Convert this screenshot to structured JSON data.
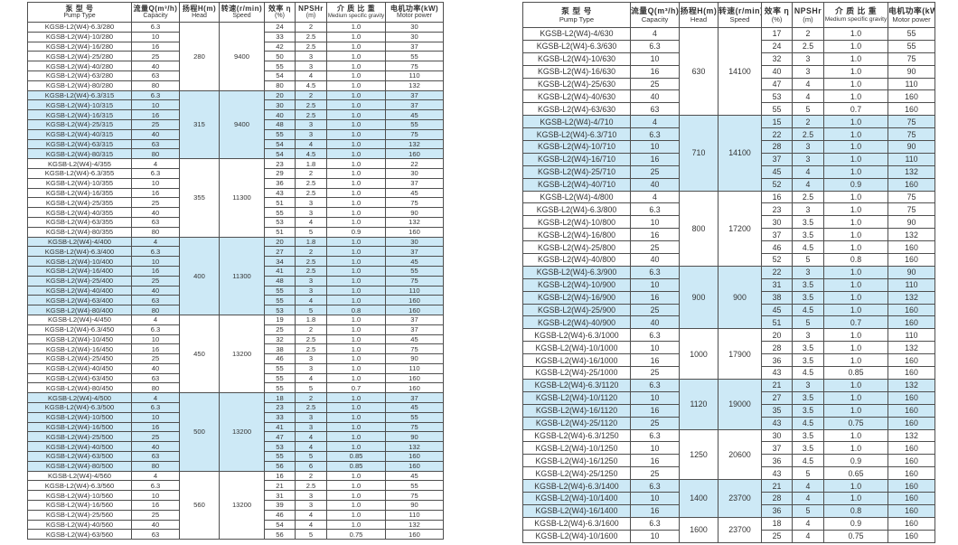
{
  "page": {
    "background_color": "#ffffff",
    "shade_color": "#cde9f6",
    "border_color": "#4f4f4f",
    "text_color": "#333333"
  },
  "columns": [
    {
      "key": "pump-type",
      "zh": "泵 型 号",
      "en": "Pump Type"
    },
    {
      "key": "capacity",
      "zh": "流量Q(m³/h)",
      "en": "Capacity"
    },
    {
      "key": "head",
      "zh": "扬程H(m)",
      "en": "Head"
    },
    {
      "key": "speed",
      "zh": "转速(r/min)",
      "en": "Speed"
    },
    {
      "key": "efficiency",
      "zh": "效率 η",
      "en": "(%)"
    },
    {
      "key": "npshr",
      "zh": "NPSHr",
      "en": "(m)"
    },
    {
      "key": "gravity",
      "zh": "介 质 比 重",
      "en": "Medium specific gravity"
    },
    {
      "key": "motor-power",
      "zh": "电机功率(kW)",
      "en": "Motor power"
    }
  ],
  "left_table": {
    "groups": [
      {
        "head": "280",
        "speed": "9400",
        "shaded": false,
        "rows": [
          [
            "KGSB-L2(W4)-6.3/280",
            "6.3",
            "24",
            "2",
            "1.0",
            "30"
          ],
          [
            "KGSB-L2(W4)-10/280",
            "10",
            "33",
            "2.5",
            "1.0",
            "30"
          ],
          [
            "KGSB-L2(W4)-16/280",
            "16",
            "42",
            "2.5",
            "1.0",
            "37"
          ],
          [
            "KGSB-L2(W4)-25/280",
            "25",
            "50",
            "3",
            "1.0",
            "55"
          ],
          [
            "KGSB-L2(W4)-40/280",
            "40",
            "55",
            "3",
            "1.0",
            "75"
          ],
          [
            "KGSB-L2(W4)-63/280",
            "63",
            "54",
            "4",
            "1.0",
            "110"
          ],
          [
            "KGSB-L2(W4)-80/280",
            "80",
            "80",
            "4.5",
            "1.0",
            "132"
          ]
        ]
      },
      {
        "head": "315",
        "speed": "9400",
        "shaded": true,
        "rows": [
          [
            "KGSB-L2(W4)-6.3/315",
            "6.3",
            "20",
            "2",
            "1.0",
            "37"
          ],
          [
            "KGSB-L2(W4)-10/315",
            "10",
            "30",
            "2.5",
            "1.0",
            "37"
          ],
          [
            "KGSB-L2(W4)-16/315",
            "16",
            "40",
            "2.5",
            "1.0",
            "45"
          ],
          [
            "KGSB-L2(W4)-25/315",
            "25",
            "48",
            "3",
            "1.0",
            "55"
          ],
          [
            "KGSB-L2(W4)-40/315",
            "40",
            "55",
            "3",
            "1.0",
            "75"
          ],
          [
            "KGSB-L2(W4)-63/315",
            "63",
            "54",
            "4",
            "1.0",
            "132"
          ],
          [
            "KGSB-L2(W4)-80/315",
            "80",
            "54",
            "4.5",
            "1.0",
            "160"
          ]
        ]
      },
      {
        "head": "355",
        "speed": "11300",
        "shaded": false,
        "rows": [
          [
            "KGSB-L2(W4)-4/355",
            "4",
            "23",
            "1.8",
            "1.0",
            "22"
          ],
          [
            "KGSB-L2(W4)-6.3/355",
            "6.3",
            "29",
            "2",
            "1.0",
            "30"
          ],
          [
            "KGSB-L2(W4)-10/355",
            "10",
            "36",
            "2.5",
            "1.0",
            "37"
          ],
          [
            "KGSB-L2(W4)-16/355",
            "16",
            "43",
            "2.5",
            "1.0",
            "45"
          ],
          [
            "KGSB-L2(W4)-25/355",
            "25",
            "51",
            "3",
            "1.0",
            "75"
          ],
          [
            "KGSB-L2(W4)-40/355",
            "40",
            "55",
            "3",
            "1.0",
            "90"
          ],
          [
            "KGSB-L2(W4)-63/355",
            "63",
            "53",
            "4",
            "1.0",
            "132"
          ],
          [
            "KGSB-L2(W4)-80/355",
            "80",
            "51",
            "5",
            "0.9",
            "160"
          ]
        ]
      },
      {
        "head": "400",
        "speed": "11300",
        "shaded": true,
        "rows": [
          [
            "KGSB-L2(W4)-4/400",
            "4",
            "20",
            "1.8",
            "1.0",
            "30"
          ],
          [
            "KGSB-L2(W4)-6.3/400",
            "6.3",
            "27",
            "2",
            "1.0",
            "37"
          ],
          [
            "KGSB-L2(W4)-10/400",
            "10",
            "34",
            "2.5",
            "1.0",
            "45"
          ],
          [
            "KGSB-L2(W4)-16/400",
            "16",
            "41",
            "2.5",
            "1.0",
            "55"
          ],
          [
            "KGSB-L2(W4)-25/400",
            "25",
            "48",
            "3",
            "1.0",
            "75"
          ],
          [
            "KGSB-L2(W4)-40/400",
            "40",
            "55",
            "3",
            "1.0",
            "110"
          ],
          [
            "KGSB-L2(W4)-63/400",
            "63",
            "55",
            "4",
            "1.0",
            "160"
          ],
          [
            "KGSB-L2(W4)-80/400",
            "80",
            "53",
            "5",
            "0.8",
            "160"
          ]
        ]
      },
      {
        "head": "450",
        "speed": "13200",
        "shaded": false,
        "rows": [
          [
            "KGSB-L2(W4)-4/450",
            "4",
            "19",
            "1.8",
            "1.0",
            "37"
          ],
          [
            "KGSB-L2(W4)-6.3/450",
            "6.3",
            "25",
            "2",
            "1.0",
            "37"
          ],
          [
            "KGSB-L2(W4)-10/450",
            "10",
            "32",
            "2.5",
            "1.0",
            "45"
          ],
          [
            "KGSB-L2(W4)-16/450",
            "16",
            "38",
            "2.5",
            "1.0",
            "75"
          ],
          [
            "KGSB-L2(W4)-25/450",
            "25",
            "46",
            "3",
            "1.0",
            "90"
          ],
          [
            "KGSB-L2(W4)-40/450",
            "40",
            "55",
            "3",
            "1.0",
            "110"
          ],
          [
            "KGSB-L2(W4)-63/450",
            "63",
            "55",
            "4",
            "1.0",
            "160"
          ],
          [
            "KGSB-L2(W4)-80/450",
            "80",
            "55",
            "5",
            "0.7",
            "160"
          ]
        ]
      },
      {
        "head": "500",
        "speed": "13200",
        "shaded": true,
        "rows": [
          [
            "KGSB-L2(W4)-4/500",
            "4",
            "18",
            "2",
            "1.0",
            "37"
          ],
          [
            "KGSB-L2(W4)-6.3/500",
            "6.3",
            "23",
            "2.5",
            "1.0",
            "45"
          ],
          [
            "KGSB-L2(W4)-10/500",
            "10",
            "33",
            "3",
            "1.0",
            "55"
          ],
          [
            "KGSB-L2(W4)-16/500",
            "16",
            "41",
            "3",
            "1.0",
            "75"
          ],
          [
            "KGSB-L2(W4)-25/500",
            "25",
            "47",
            "4",
            "1.0",
            "90"
          ],
          [
            "KGSB-L2(W4)-40/500",
            "40",
            "53",
            "4",
            "1.0",
            "132"
          ],
          [
            "KGSB-L2(W4)-63/500",
            "63",
            "55",
            "5",
            "0.85",
            "160"
          ],
          [
            "KGSB-L2(W4)-80/500",
            "80",
            "56",
            "6",
            "0.85",
            "160"
          ]
        ]
      },
      {
        "head": "560",
        "speed": "13200",
        "shaded": false,
        "rows": [
          [
            "KGSB-L2(W4)-4/560",
            "4",
            "16",
            "2",
            "1.0",
            "45"
          ],
          [
            "KGSB-L2(W4)-6.3/560",
            "6.3",
            "21",
            "2.5",
            "1.0",
            "55"
          ],
          [
            "KGSB-L2(W4)-10/560",
            "10",
            "31",
            "3",
            "1.0",
            "75"
          ],
          [
            "KGSB-L2(W4)-16/560",
            "16",
            "39",
            "3",
            "1.0",
            "90"
          ],
          [
            "KGSB-L2(W4)-25/560",
            "25",
            "46",
            "4",
            "1.0",
            "110"
          ],
          [
            "KGSB-L2(W4)-40/560",
            "40",
            "54",
            "4",
            "1.0",
            "132"
          ],
          [
            "KGSB-L2(W4)-63/560",
            "63",
            "56",
            "5",
            "0.75",
            "160"
          ]
        ]
      }
    ]
  },
  "right_table": {
    "groups": [
      {
        "head": "630",
        "speed": "14100",
        "shaded": false,
        "rows": [
          [
            "KGSB-L2(W4)-4/630",
            "4",
            "17",
            "2",
            "1.0",
            "55"
          ],
          [
            "KGSB-L2(W4)-6.3/630",
            "6.3",
            "24",
            "2.5",
            "1.0",
            "55"
          ],
          [
            "KGSB-L2(W4)-10/630",
            "10",
            "32",
            "3",
            "1.0",
            "75"
          ],
          [
            "KGSB-L2(W4)-16/630",
            "16",
            "40",
            "3",
            "1.0",
            "90"
          ],
          [
            "KGSB-L2(W4)-25/630",
            "25",
            "47",
            "4",
            "1.0",
            "110"
          ],
          [
            "KGSB-L2(W4)-40/630",
            "40",
            "53",
            "4",
            "1.0",
            "160"
          ],
          [
            "KGSB-L2(W4)-63/630",
            "63",
            "55",
            "5",
            "0.7",
            "160"
          ]
        ]
      },
      {
        "head": "710",
        "speed": "14100",
        "shaded": true,
        "rows": [
          [
            "KGSB-L2(W4)-4/710",
            "4",
            "15",
            "2",
            "1.0",
            "75"
          ],
          [
            "KGSB-L2(W4)-6.3/710",
            "6.3",
            "22",
            "2.5",
            "1.0",
            "75"
          ],
          [
            "KGSB-L2(W4)-10/710",
            "10",
            "28",
            "3",
            "1.0",
            "90"
          ],
          [
            "KGSB-L2(W4)-16/710",
            "16",
            "37",
            "3",
            "1.0",
            "110"
          ],
          [
            "KGSB-L2(W4)-25/710",
            "25",
            "45",
            "4",
            "1.0",
            "132"
          ],
          [
            "KGSB-L2(W4)-40/710",
            "40",
            "52",
            "4",
            "0.9",
            "160"
          ]
        ]
      },
      {
        "head": "800",
        "speed": "17200",
        "shaded": false,
        "rows": [
          [
            "KGSB-L2(W4)-4/800",
            "4",
            "16",
            "2.5",
            "1.0",
            "75"
          ],
          [
            "KGSB-L2(W4)-6.3/800",
            "6.3",
            "23",
            "3",
            "1.0",
            "75"
          ],
          [
            "KGSB-L2(W4)-10/800",
            "10",
            "30",
            "3.5",
            "1.0",
            "90"
          ],
          [
            "KGSB-L2(W4)-16/800",
            "16",
            "37",
            "3.5",
            "1.0",
            "132"
          ],
          [
            "KGSB-L2(W4)-25/800",
            "25",
            "46",
            "4.5",
            "1.0",
            "160"
          ],
          [
            "KGSB-L2(W4)-40/800",
            "40",
            "52",
            "5",
            "0.8",
            "160"
          ]
        ]
      },
      {
        "head": "900",
        "speed": "900",
        "shaded": true,
        "rows": [
          [
            "KGSB-L2(W4)-6.3/900",
            "6.3",
            "22",
            "3",
            "1.0",
            "90"
          ],
          [
            "KGSB-L2(W4)-10/900",
            "10",
            "31",
            "3.5",
            "1.0",
            "110"
          ],
          [
            "KGSB-L2(W4)-16/900",
            "16",
            "38",
            "3.5",
            "1.0",
            "132"
          ],
          [
            "KGSB-L2(W4)-25/900",
            "25",
            "45",
            "4.5",
            "1.0",
            "160"
          ],
          [
            "KGSB-L2(W4)-40/900",
            "40",
            "51",
            "5",
            "0.7",
            "160"
          ]
        ]
      },
      {
        "head": "1000",
        "speed": "17900",
        "shaded": false,
        "rows": [
          [
            "KGSB-L2(W4)-6.3/1000",
            "6.3",
            "20",
            "3",
            "1.0",
            "110"
          ],
          [
            "KGSB-L2(W4)-10/1000",
            "10",
            "28",
            "3.5",
            "1.0",
            "132"
          ],
          [
            "KGSB-L2(W4)-16/1000",
            "16",
            "36",
            "3.5",
            "1.0",
            "160"
          ],
          [
            "KGSB-L2(W4)-25/1000",
            "25",
            "43",
            "4.5",
            "0.85",
            "160"
          ]
        ]
      },
      {
        "head": "1120",
        "speed": "19000",
        "shaded": true,
        "rows": [
          [
            "KGSB-L2(W4)-6.3/1120",
            "6.3",
            "21",
            "3",
            "1.0",
            "132"
          ],
          [
            "KGSB-L2(W4)-10/1120",
            "10",
            "27",
            "3.5",
            "1.0",
            "160"
          ],
          [
            "KGSB-L2(W4)-16/1120",
            "16",
            "35",
            "3.5",
            "1.0",
            "160"
          ],
          [
            "KGSB-L2(W4)-25/1120",
            "25",
            "43",
            "4.5",
            "0.75",
            "160"
          ]
        ]
      },
      {
        "head": "1250",
        "speed": "20600",
        "shaded": false,
        "rows": [
          [
            "KGSB-L2(W4)-6.3/1250",
            "6.3",
            "30",
            "3.5",
            "1.0",
            "132"
          ],
          [
            "KGSB-L2(W4)-10/1250",
            "10",
            "37",
            "3.5",
            "1.0",
            "160"
          ],
          [
            "KGSB-L2(W4)-16/1250",
            "16",
            "36",
            "4.5",
            "0.9",
            "160"
          ],
          [
            "KGSB-L2(W4)-25/1250",
            "25",
            "43",
            "5",
            "0.65",
            "160"
          ]
        ]
      },
      {
        "head": "1400",
        "speed": "23700",
        "shaded": true,
        "rows": [
          [
            "KGSB-L2(W4)-6.3/1400",
            "6.3",
            "21",
            "4",
            "1.0",
            "160"
          ],
          [
            "KGSB-L2(W4)-10/1400",
            "10",
            "28",
            "4",
            "1.0",
            "160"
          ],
          [
            "KGSB-L2(W4)-16/1400",
            "16",
            "36",
            "5",
            "0.8",
            "160"
          ]
        ]
      },
      {
        "head": "1600",
        "speed": "23700",
        "shaded": false,
        "rows": [
          [
            "KGSB-L2(W4)-6.3/1600",
            "6.3",
            "18",
            "4",
            "0.9",
            "160"
          ],
          [
            "KGSB-L2(W4)-10/1600",
            "10",
            "25",
            "4",
            "0.75",
            "160"
          ]
        ]
      }
    ]
  }
}
